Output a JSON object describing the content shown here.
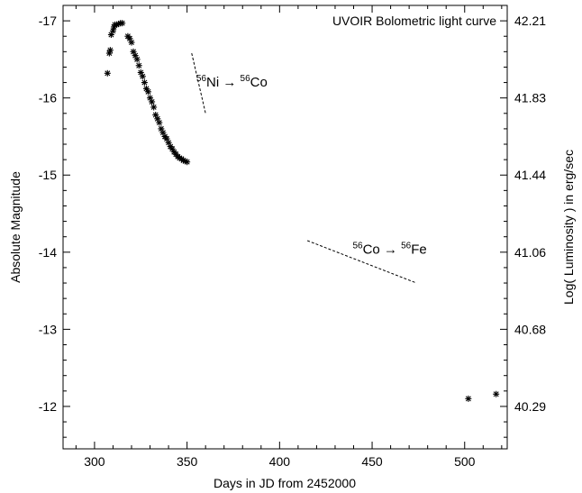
{
  "chart_data": {
    "type": "scatter",
    "title": "UVOIR Bolometric light curve",
    "xlabel": "Days in JD from 2452000",
    "ylabel": "Absolute Magnitude",
    "y2label": "Log( Luminosity ) in erg/sec",
    "xlim": [
      283,
      523
    ],
    "ylim": [
      -11.45,
      -17.2
    ],
    "y_inverted": true,
    "grid": false,
    "x_ticks": [
      300,
      350,
      400,
      450,
      500
    ],
    "y_ticks": [
      -17,
      -16,
      -15,
      -14,
      -13,
      -12
    ],
    "y2_ticks": [
      {
        "label": "42.21",
        "at_mag": -17
      },
      {
        "label": "41.83",
        "at_mag": -16
      },
      {
        "label": "41.44",
        "at_mag": -15
      },
      {
        "label": "41.06",
        "at_mag": -14
      },
      {
        "label": "40.68",
        "at_mag": -13
      },
      {
        "label": "40.29",
        "at_mag": -12
      }
    ],
    "marker": "asterisk",
    "series": [
      {
        "x": [
          307,
          308,
          308.5,
          309,
          310,
          310.5,
          311,
          312,
          313,
          314,
          315,
          318,
          319,
          320,
          321,
          322,
          323,
          324,
          325,
          326,
          327,
          328,
          329,
          330,
          331,
          332,
          333,
          334,
          335,
          336,
          337,
          338,
          339,
          340,
          341,
          342,
          343,
          344,
          345,
          346,
          347,
          348,
          349,
          350,
          502,
          517
        ],
        "y": [
          -16.32,
          -16.58,
          -16.62,
          -16.82,
          -16.87,
          -16.92,
          -16.95,
          -16.95,
          -16.96,
          -16.97,
          -16.97,
          -16.8,
          -16.77,
          -16.72,
          -16.6,
          -16.55,
          -16.5,
          -16.42,
          -16.33,
          -16.28,
          -16.2,
          -16.12,
          -16.08,
          -16.0,
          -15.95,
          -15.88,
          -15.78,
          -15.73,
          -15.68,
          -15.6,
          -15.55,
          -15.5,
          -15.47,
          -15.42,
          -15.37,
          -15.34,
          -15.3,
          -15.27,
          -15.24,
          -15.22,
          -15.21,
          -15.19,
          -15.18,
          -15.17,
          -12.1,
          -12.16
        ]
      }
    ],
    "annotations": [
      {
        "type": "dashed_line",
        "x1": 352.5,
        "y1": -16.58,
        "x2": 360,
        "y2": -15.8
      },
      {
        "type": "label",
        "x": 355,
        "y": -16.15,
        "superscript1": "56",
        "base1": "Ni",
        "arrow": "→",
        "superscript2": "56",
        "base2": "Co"
      },
      {
        "type": "dashed_line",
        "x1": 415,
        "y1": -14.15,
        "x2": 474,
        "y2": -13.6
      },
      {
        "type": "label",
        "x": 439.5,
        "y": -13.98,
        "superscript1": "56",
        "base1": "Co",
        "arrow": "→",
        "superscript2": "56",
        "base2": "Fe"
      }
    ]
  }
}
